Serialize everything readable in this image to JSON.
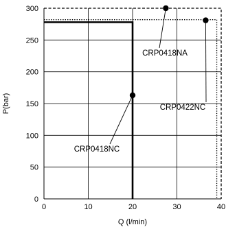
{
  "chart_data": {
    "type": "line",
    "title": "",
    "xlabel": "Q (l/min)",
    "ylabel": "P(bar)",
    "xlim": [
      0,
      40
    ],
    "ylim": [
      0,
      300
    ],
    "x_ticks": [
      0,
      10,
      20,
      30,
      40
    ],
    "y_ticks": [
      0,
      50,
      100,
      150,
      200,
      250,
      300
    ],
    "grid": true,
    "series": [
      {
        "name": "CRP0418NA",
        "line_style": "dashed",
        "points": [
          [
            0,
            300
          ],
          [
            40,
            300
          ],
          [
            40,
            0
          ]
        ]
      },
      {
        "name": "CRP0422NC",
        "line_style": "dotted",
        "points": [
          [
            0,
            282
          ],
          [
            39,
            282
          ],
          [
            39,
            0
          ]
        ]
      },
      {
        "name": "CRP0418NC",
        "line_style": "solid-thick",
        "points": [
          [
            0,
            278
          ],
          [
            20,
            278
          ],
          [
            20,
            0
          ]
        ]
      }
    ],
    "annotations": [
      {
        "text": "CRP0418NA",
        "point": [
          27.5,
          300
        ]
      },
      {
        "text": "CRP0422NC",
        "point": [
          36.5,
          281
        ]
      },
      {
        "text": "CRP0418NC",
        "point": [
          20,
          163
        ]
      }
    ]
  }
}
